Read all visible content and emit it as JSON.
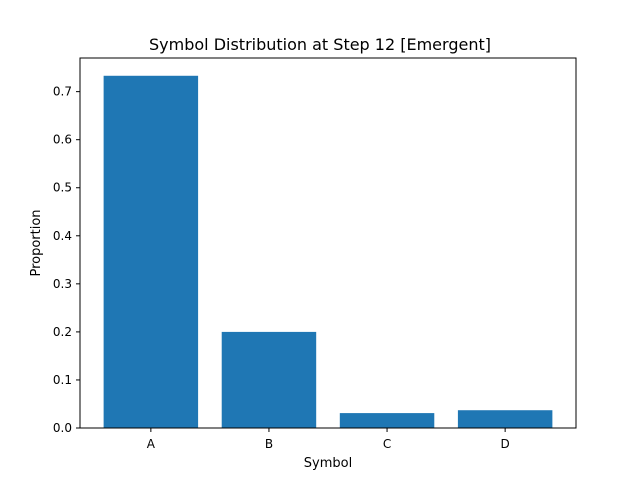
{
  "chart_data": {
    "type": "bar",
    "title": "Symbol Distribution at Step 12 [Emergent]",
    "xlabel": "Symbol",
    "ylabel": "Proportion",
    "categories": [
      "A",
      "B",
      "C",
      "D"
    ],
    "values": [
      0.733,
      0.2,
      0.031,
      0.037
    ],
    "ylim": [
      0,
      0.77
    ],
    "yticks": [
      0.0,
      0.1,
      0.2,
      0.3,
      0.4,
      0.5,
      0.6,
      0.7
    ],
    "ytick_labels": [
      "0.0",
      "0.1",
      "0.2",
      "0.3",
      "0.4",
      "0.5",
      "0.6",
      "0.7"
    ],
    "bar_color": "#1f77b4",
    "grid": false,
    "legend": "none"
  }
}
